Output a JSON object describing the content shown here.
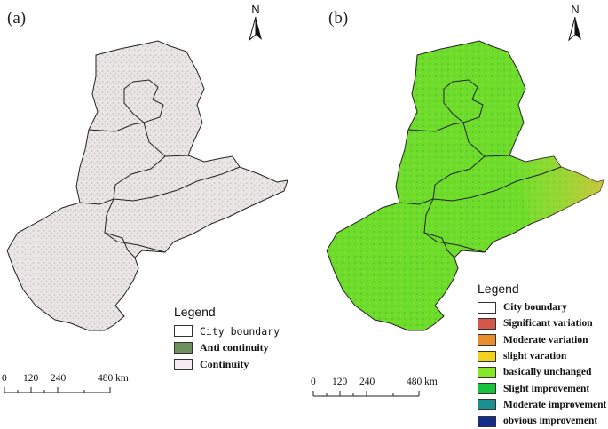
{
  "panels": [
    {
      "label": "(a)",
      "north": "N",
      "legend": {
        "title": "Legend",
        "items": [
          {
            "label": "City boundary",
            "color": "#ffffff",
            "style": "plain"
          },
          {
            "label": "Anti continuity",
            "color": "#6f8f5e",
            "style": "bold"
          },
          {
            "label": "Continuity",
            "color": "#f7ecf4",
            "style": "bold"
          }
        ]
      },
      "scale": {
        "ticks": [
          "0",
          "120",
          "240",
          "480 km"
        ]
      },
      "map_fill": "#ece6e8",
      "map_texture": "#8fa07f"
    },
    {
      "label": "(b)",
      "north": "N",
      "legend": {
        "title": "Legend",
        "items": [
          {
            "label": "City boundary",
            "color": "#ffffff"
          },
          {
            "label": "Significant variation",
            "color": "#d4574a"
          },
          {
            "label": "Moderate variation",
            "color": "#e88e2c"
          },
          {
            "label": "slight varation",
            "color": "#f2d21c"
          },
          {
            "label": "basically unchanged",
            "color": "#86e628"
          },
          {
            "label": "Slight improvement",
            "color": "#19c23d"
          },
          {
            "label": "Moderate improvement",
            "color": "#1b9090"
          },
          {
            "label": "obvious improvement",
            "color": "#142c8a"
          }
        ]
      },
      "scale": {
        "ticks": [
          "0",
          "120",
          "240",
          "480 km"
        ]
      },
      "map_fill": "#6fdd2c",
      "map_texture": "#3fbf2f"
    }
  ]
}
